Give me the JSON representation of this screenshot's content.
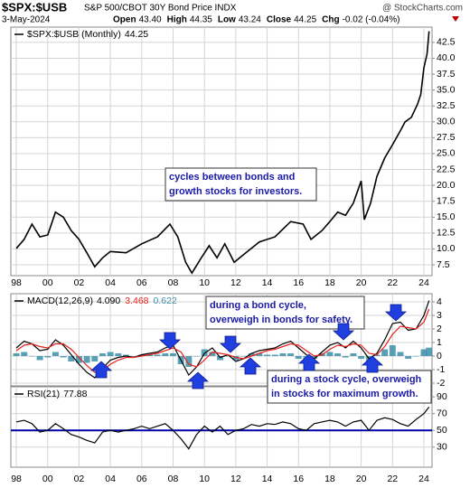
{
  "chart_data": [
    {
      "type": "line",
      "title": "$SPX:$USB",
      "subtitle": "S&P 500/CBOT 30Y Bond Price INDX",
      "source": "@ StockCharts.com",
      "date": "3-May-2024",
      "quote": [
        {
          "name": "Open",
          "value": 43.4,
          "label": "43.40"
        },
        {
          "name": "High",
          "value": 44.35,
          "label": "44.35"
        },
        {
          "name": "Low",
          "value": 43.24,
          "label": "43.24"
        },
        {
          "name": "Close",
          "value": 44.25,
          "label": "44.25"
        },
        {
          "name": "Chg",
          "value": -0.02,
          "label": "-0.02 (-0.04%)"
        }
      ],
      "x": [
        1998,
        1998.5,
        1999,
        1999.5,
        2000,
        2000.5,
        2001,
        2001.5,
        2002,
        2002.5,
        2003,
        2003.5,
        2004,
        2005,
        2006,
        2007,
        2007.8,
        2008.3,
        2008.8,
        2009.2,
        2009.8,
        2010.3,
        2010.8,
        2011.3,
        2011.9,
        2012.5,
        2013.5,
        2014.5,
        2015.5,
        2016.3,
        2016.8,
        2017.5,
        2018,
        2018.5,
        2019,
        2019.5,
        2020,
        2020.2,
        2020.6,
        2021,
        2021.5,
        2022,
        2022.5,
        2022.8,
        2023.2,
        2023.6,
        2023.8,
        2024,
        2024.2,
        2024.33
      ],
      "series": [
        {
          "name": "$SPX:$USB (Monthly)",
          "color": "#000000",
          "values": [
            10.1,
            11.5,
            13.9,
            11.9,
            12.2,
            15.8,
            15.0,
            12.9,
            11.5,
            9.4,
            7.2,
            8.6,
            9.6,
            9.4,
            10.8,
            11.9,
            13.9,
            11.9,
            7.9,
            6.2,
            8.6,
            10.5,
            8.6,
            10.8,
            7.9,
            9.1,
            11.1,
            11.9,
            14.3,
            13.9,
            11.5,
            12.9,
            14.3,
            15.8,
            15.3,
            17.2,
            20.7,
            14.6,
            17.2,
            21.4,
            24.3,
            26.4,
            28.6,
            30.0,
            30.7,
            32.8,
            34.3,
            38.5,
            40.7,
            44.25
          ]
        }
      ],
      "xlim": [
        1997.65,
        2024.52
      ],
      "xticks": [
        {
          "value": 1998,
          "label": "98"
        },
        {
          "value": 2000,
          "label": "00"
        },
        {
          "value": 2002,
          "label": "02"
        },
        {
          "value": 2004,
          "label": "04"
        },
        {
          "value": 2006,
          "label": "06"
        },
        {
          "value": 2008,
          "label": "08"
        },
        {
          "value": 2010,
          "label": "10"
        },
        {
          "value": 2012,
          "label": "12"
        },
        {
          "value": 2014,
          "label": "14"
        },
        {
          "value": 2016,
          "label": "16"
        },
        {
          "value": 2018,
          "label": "18"
        },
        {
          "value": 2020,
          "label": "20"
        },
        {
          "value": 2022,
          "label": "22"
        },
        {
          "value": 2024,
          "label": "24"
        }
      ],
      "ylim": [
        5.8,
        44.9
      ],
      "yticks": [
        42.5,
        {
          "value": 40,
          "label": "40.0"
        },
        37.5,
        {
          "value": 35,
          "label": "35.0"
        },
        32.5,
        {
          "value": 30,
          "label": "30.0"
        },
        27.5,
        {
          "value": 25,
          "label": "25.0"
        },
        22.5,
        {
          "value": 20,
          "label": "20.0"
        },
        17.5,
        {
          "value": 15,
          "label": "15.0"
        },
        12.5,
        {
          "value": 10,
          "label": "10.0"
        },
        7.5
      ],
      "grid": true
    },
    {
      "type": "line",
      "title": "MACD(12,26,9)",
      "x": [
        1998,
        1998.5,
        1999,
        1999.5,
        2000,
        2000.5,
        2001,
        2001.5,
        2002,
        2002.5,
        2003,
        2003.5,
        2004,
        2004.5,
        2005,
        2005.5,
        2006,
        2006.5,
        2007,
        2007.5,
        2008,
        2008.5,
        2009,
        2009.5,
        2010,
        2010.5,
        2011,
        2011.5,
        2012,
        2012.5,
        2013,
        2013.5,
        2014,
        2014.5,
        2015,
        2015.5,
        2016,
        2016.5,
        2017,
        2017.5,
        2018,
        2018.5,
        2019,
        2019.5,
        2020,
        2020.5,
        2021,
        2021.5,
        2022,
        2022.5,
        2023,
        2023.5,
        2024,
        2024.33
      ],
      "series": [
        {
          "name": "MACD",
          "kind": "line",
          "color": "#000000",
          "readout": "4.090",
          "values": [
            0.6,
            1.1,
            0.9,
            0.4,
            0.5,
            1.2,
            0.8,
            0.1,
            -0.6,
            -1.2,
            -1.6,
            -0.9,
            -0.3,
            -0.1,
            0.0,
            -0.1,
            0.1,
            0.2,
            0.3,
            0.6,
            0.8,
            -0.3,
            -1.4,
            -0.8,
            0.2,
            0.6,
            -0.1,
            0.1,
            -0.4,
            -0.2,
            0.2,
            0.4,
            0.5,
            0.6,
            0.9,
            1.1,
            0.6,
            0.1,
            -0.2,
            0.3,
            0.8,
            1.0,
            0.6,
            1.1,
            0.6,
            -0.2,
            0.2,
            1.2,
            2.4,
            2.5,
            1.9,
            2.0,
            3.0,
            4.09
          ]
        },
        {
          "name": "Signal",
          "kind": "line",
          "color": "#e8201c",
          "readout": "3.468",
          "values": [
            0.4,
            0.8,
            0.9,
            0.7,
            0.6,
            0.9,
            0.9,
            0.5,
            -0.1,
            -0.7,
            -1.2,
            -1.1,
            -0.6,
            -0.3,
            -0.1,
            -0.1,
            0.0,
            0.1,
            0.2,
            0.4,
            0.6,
            0.3,
            -0.6,
            -0.8,
            -0.3,
            0.3,
            0.2,
            0.1,
            -0.1,
            -0.2,
            0.0,
            0.2,
            0.4,
            0.5,
            0.7,
            0.9,
            0.8,
            0.4,
            0.0,
            0.1,
            0.5,
            0.8,
            0.7,
            0.9,
            0.8,
            0.2,
            0.1,
            0.7,
            1.6,
            2.2,
            2.1,
            2.0,
            2.5,
            3.468
          ]
        },
        {
          "name": "Histogram",
          "kind": "bar",
          "color": "#3b8fa8",
          "readout": "0.622",
          "values": [
            0.2,
            0.3,
            0.0,
            -0.3,
            -0.1,
            0.3,
            -0.1,
            -0.4,
            -0.5,
            -0.5,
            -0.4,
            0.2,
            0.3,
            0.2,
            0.1,
            0.0,
            0.1,
            0.1,
            0.1,
            0.2,
            0.2,
            -0.6,
            -0.8,
            0.0,
            0.5,
            0.3,
            -0.3,
            0.0,
            -0.3,
            0.0,
            0.2,
            0.2,
            0.1,
            0.1,
            0.2,
            0.2,
            -0.2,
            -0.3,
            -0.2,
            0.2,
            0.3,
            0.2,
            -0.1,
            0.2,
            -0.2,
            -0.4,
            0.1,
            0.5,
            0.8,
            0.3,
            -0.2,
            0.0,
            0.5,
            0.622
          ]
        }
      ],
      "xlim": [
        1997.65,
        2024.52
      ],
      "ylim": [
        -2.2,
        4.6
      ],
      "yticks": [
        4,
        3,
        2,
        1,
        0,
        -1,
        -2
      ],
      "grid": true
    },
    {
      "type": "line",
      "title": "RSI(21)",
      "x": [
        1998,
        1998.5,
        1999,
        1999.5,
        2000,
        2000.5,
        2001,
        2001.5,
        2002,
        2002.5,
        2003,
        2003.5,
        2004,
        2004.5,
        2005,
        2005.5,
        2006,
        2006.5,
        2007,
        2007.5,
        2008,
        2008.5,
        2009,
        2009.5,
        2010,
        2010.5,
        2011,
        2011.5,
        2012,
        2012.5,
        2013,
        2013.5,
        2014,
        2014.5,
        2015,
        2015.5,
        2016,
        2016.5,
        2017,
        2017.5,
        2018,
        2018.5,
        2019,
        2019.5,
        2020,
        2020.5,
        2021,
        2021.5,
        2022,
        2022.5,
        2023,
        2023.5,
        2024,
        2024.33
      ],
      "series": [
        {
          "name": "RSI(21)",
          "kind": "line",
          "color": "#000000",
          "values": [
            60,
            62,
            58,
            48,
            50,
            58,
            52,
            45,
            42,
            38,
            35,
            48,
            50,
            48,
            50,
            52,
            55,
            52,
            55,
            58,
            50,
            40,
            28,
            45,
            55,
            48,
            55,
            45,
            50,
            52,
            57,
            55,
            58,
            57,
            60,
            58,
            52,
            50,
            58,
            60,
            62,
            60,
            55,
            60,
            62,
            50,
            62,
            65,
            63,
            58,
            55,
            63,
            70,
            77.88
          ]
        }
      ],
      "xlim": [
        1997.65,
        2024.52
      ],
      "xticks": [
        {
          "value": 1998,
          "label": "98"
        },
        {
          "value": 2000,
          "label": "00"
        },
        {
          "value": 2002,
          "label": "02"
        },
        {
          "value": 2004,
          "label": "04"
        },
        {
          "value": 2006,
          "label": "06"
        },
        {
          "value": 2008,
          "label": "08"
        },
        {
          "value": 2010,
          "label": "10"
        },
        {
          "value": 2012,
          "label": "12"
        },
        {
          "value": 2014,
          "label": "14"
        },
        {
          "value": 2016,
          "label": "16"
        },
        {
          "value": 2018,
          "label": "18"
        },
        {
          "value": 2020,
          "label": "20"
        },
        {
          "value": 2022,
          "label": "22"
        },
        {
          "value": 2024,
          "label": "24"
        }
      ],
      "ylim": [
        6,
        102
      ],
      "yticks": [
        90,
        70,
        50,
        30
      ],
      "grid": true,
      "hlines": [
        {
          "value": 50,
          "color": "#0000aa"
        }
      ]
    }
  ],
  "annotations": [
    {
      "lines": [
        "cycles between bonds and",
        "growth stocks for investors."
      ]
    },
    {
      "lines": [
        "during a bond cycle,",
        "overweigh in bonds for safety."
      ]
    },
    {
      "lines": [
        "during a stock cycle, overweigh",
        "in stocks for maximum growth."
      ]
    }
  ]
}
